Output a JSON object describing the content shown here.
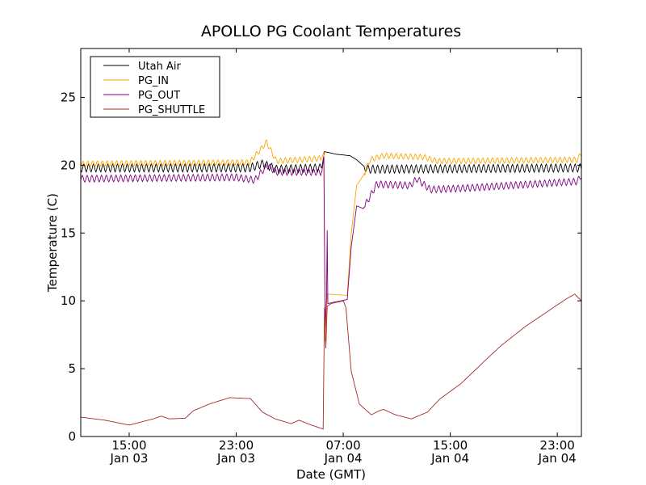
{
  "chart_data": {
    "type": "line",
    "title": "APOLLO PG Coolant Temperatures",
    "xlabel": "Date (GMT)",
    "ylabel": "Temperature (C)",
    "x_units": "hours since Jan 03 00:00 GMT",
    "xlim": [
      11.38,
      48.8
    ],
    "ylim": [
      0,
      28.6
    ],
    "yticks": [
      0,
      5,
      10,
      15,
      20,
      25
    ],
    "xticks": [
      {
        "value": 15,
        "line1": "15:00",
        "line2": "Jan 03"
      },
      {
        "value": 23,
        "line1": "23:00",
        "line2": "Jan 03"
      },
      {
        "value": 31,
        "line1": "07:00",
        "line2": "Jan 04"
      },
      {
        "value": 39,
        "line1": "15:00",
        "line2": "Jan 04"
      },
      {
        "value": 47,
        "line1": "23:00",
        "line2": "Jan 04"
      }
    ],
    "legend_position": "top-left",
    "ripple_period_hours": 0.36,
    "series": [
      {
        "name": "Utah Air",
        "color": "#000000",
        "ripple": 0.3,
        "points": [
          [
            11.38,
            19.8
          ],
          [
            24,
            19.8
          ],
          [
            25,
            20.1
          ],
          [
            26,
            19.7
          ],
          [
            29.4,
            19.8
          ],
          [
            29.6,
            21.0
          ],
          [
            30.5,
            20.8
          ],
          [
            31.5,
            20.7
          ],
          [
            32,
            20.4
          ],
          [
            32.8,
            19.7
          ],
          [
            48.8,
            19.8
          ]
        ]
      },
      {
        "name": "PG_IN",
        "color": "#ffa500",
        "ripple": 0.2,
        "points": [
          [
            11.38,
            20.1
          ],
          [
            23,
            20.2
          ],
          [
            24,
            20.2
          ],
          [
            25.27,
            21.7
          ],
          [
            26,
            20.3
          ],
          [
            29.4,
            20.5
          ],
          [
            29.55,
            21.0
          ],
          [
            29.65,
            7.0
          ],
          [
            29.8,
            10.5
          ],
          [
            31.3,
            10.4
          ],
          [
            31.6,
            15.0
          ],
          [
            32.0,
            18.5
          ],
          [
            32.6,
            19.4
          ],
          [
            33,
            20.4
          ],
          [
            34,
            20.7
          ],
          [
            37,
            20.6
          ],
          [
            38,
            20.3
          ],
          [
            48.5,
            20.4
          ],
          [
            48.8,
            20.9
          ]
        ]
      },
      {
        "name": "PG_OUT",
        "color": "#800080",
        "ripple": 0.25,
        "points": [
          [
            11.38,
            19.0
          ],
          [
            23,
            19.1
          ],
          [
            24.4,
            18.9
          ],
          [
            25.3,
            20.0
          ],
          [
            26,
            19.5
          ],
          [
            29.4,
            19.5
          ],
          [
            29.55,
            20.6
          ],
          [
            29.65,
            8.0
          ],
          [
            29.75,
            10.2
          ],
          [
            29.8,
            15.2
          ],
          [
            29.85,
            9.8
          ],
          [
            31.3,
            10.1
          ],
          [
            31.6,
            14.0
          ],
          [
            32.0,
            17.0
          ],
          [
            32.5,
            16.8
          ],
          [
            33.5,
            18.6
          ],
          [
            36,
            18.5
          ],
          [
            36.5,
            19.0
          ],
          [
            37.5,
            18.2
          ],
          [
            40,
            18.3
          ],
          [
            48.5,
            18.8
          ],
          [
            48.8,
            19.3
          ]
        ]
      },
      {
        "name": "PG_SHUTTLE",
        "color": "#a52a2a",
        "ripple": 0,
        "points": [
          [
            11.38,
            1.43
          ],
          [
            13.19,
            1.2
          ],
          [
            15,
            0.84
          ],
          [
            16.8,
            1.3
          ],
          [
            17.4,
            1.5
          ],
          [
            18,
            1.3
          ],
          [
            19.2,
            1.35
          ],
          [
            19.8,
            1.9
          ],
          [
            21,
            2.4
          ],
          [
            22.5,
            2.86
          ],
          [
            24.06,
            2.8
          ],
          [
            24.96,
            1.8
          ],
          [
            25.9,
            1.3
          ],
          [
            27.1,
            0.95
          ],
          [
            27.7,
            1.2
          ],
          [
            28.6,
            0.85
          ],
          [
            29.5,
            0.55
          ],
          [
            29.6,
            9.5
          ],
          [
            29.7,
            6.5
          ],
          [
            29.8,
            9.6
          ],
          [
            30.1,
            9.8
          ],
          [
            31,
            10.0
          ],
          [
            31.2,
            9.5
          ],
          [
            31.6,
            4.8
          ],
          [
            32.2,
            2.4
          ],
          [
            33.1,
            1.6
          ],
          [
            33.7,
            1.9
          ],
          [
            34,
            2.0
          ],
          [
            34.9,
            1.6
          ],
          [
            36.1,
            1.3
          ],
          [
            37.3,
            1.8
          ],
          [
            38.2,
            2.75
          ],
          [
            39.8,
            3.9
          ],
          [
            41.6,
            5.6
          ],
          [
            42.8,
            6.7
          ],
          [
            44.6,
            8.1
          ],
          [
            46.4,
            9.3
          ],
          [
            47.6,
            10.1
          ],
          [
            48.3,
            10.5
          ],
          [
            48.8,
            10.0
          ]
        ]
      }
    ]
  }
}
